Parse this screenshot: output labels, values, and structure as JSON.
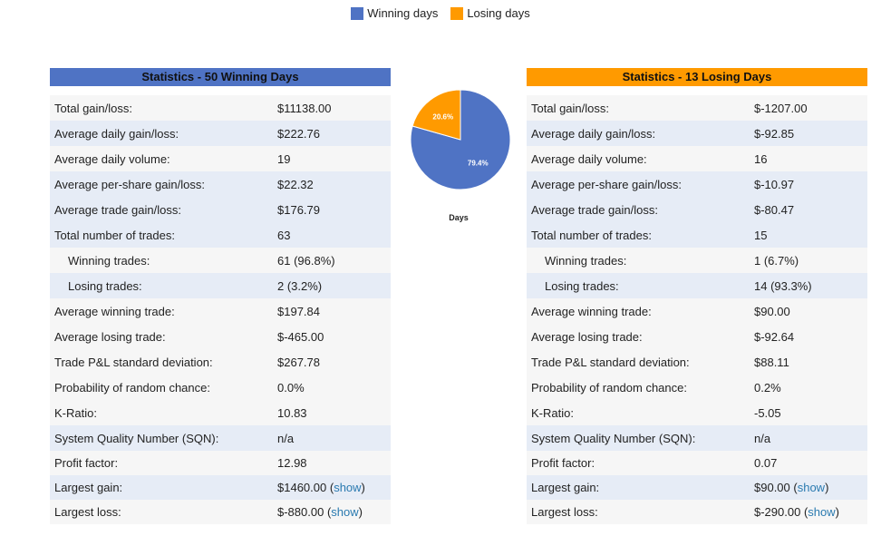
{
  "legend": {
    "items": [
      {
        "label": "Winning days",
        "color": "#4f73c4"
      },
      {
        "label": "Losing days",
        "color": "#ff9a00"
      }
    ]
  },
  "colors": {
    "win_header": "#4f73c4",
    "lose_header": "#ff9a00",
    "link": "#2a7ab0"
  },
  "chart_data": {
    "type": "pie",
    "title": "Days",
    "slices": [
      {
        "label": "Winning days",
        "value": 79.4,
        "text": "79.4%",
        "color": "#4f73c4"
      },
      {
        "label": "Losing days",
        "value": 20.6,
        "text": "20.6%",
        "color": "#ff9a00"
      }
    ]
  },
  "winning": {
    "title": "Statistics - 50 Winning Days",
    "rows": [
      {
        "label": "Total gain/loss:",
        "value": "$11138.00"
      },
      {
        "label": "Average daily gain/loss:",
        "value": "$222.76"
      },
      {
        "label": "Average daily volume:",
        "value": "19"
      },
      {
        "label": "Average per-share gain/loss:",
        "value": "$22.32"
      },
      {
        "label": "Average trade gain/loss:",
        "value": "$176.79"
      },
      {
        "label": "Total number of trades:",
        "value": "63"
      },
      {
        "label": "Winning trades:",
        "value": "61 (96.8%)"
      },
      {
        "label": "Losing trades:",
        "value": "2 (3.2%)"
      },
      {
        "label": "Average winning trade:",
        "value": "$197.84"
      },
      {
        "label": "Average losing trade:",
        "value": "$-465.00"
      },
      {
        "label": "Trade P&L standard deviation:",
        "value": "$267.78"
      },
      {
        "label": "Probability of random chance:",
        "value": "0.0%"
      },
      {
        "label": "K-Ratio:",
        "value": "10.83"
      },
      {
        "label": "System Quality Number (SQN):",
        "value": "n/a"
      },
      {
        "label": "Profit factor:",
        "value": "12.98"
      },
      {
        "label": "Largest gain:",
        "value": "$1460.00",
        "link": "show"
      },
      {
        "label": "Largest loss:",
        "value": "$-880.00",
        "link": "show"
      }
    ]
  },
  "losing": {
    "title": "Statistics - 13 Losing Days",
    "rows": [
      {
        "label": "Total gain/loss:",
        "value": "$-1207.00"
      },
      {
        "label": "Average daily gain/loss:",
        "value": "$-92.85"
      },
      {
        "label": "Average daily volume:",
        "value": "16"
      },
      {
        "label": "Average per-share gain/loss:",
        "value": "$-10.97"
      },
      {
        "label": "Average trade gain/loss:",
        "value": "$-80.47"
      },
      {
        "label": "Total number of trades:",
        "value": "15"
      },
      {
        "label": "Winning trades:",
        "value": "1 (6.7%)"
      },
      {
        "label": "Losing trades:",
        "value": "14 (93.3%)"
      },
      {
        "label": "Average winning trade:",
        "value": "$90.00"
      },
      {
        "label": "Average losing trade:",
        "value": "$-92.64"
      },
      {
        "label": "Trade P&L standard deviation:",
        "value": "$88.11"
      },
      {
        "label": "Probability of random chance:",
        "value": "0.2%"
      },
      {
        "label": "K-Ratio:",
        "value": "-5.05"
      },
      {
        "label": "System Quality Number (SQN):",
        "value": "n/a"
      },
      {
        "label": "Profit factor:",
        "value": "0.07"
      },
      {
        "label": "Largest gain:",
        "value": "$90.00",
        "link": "show"
      },
      {
        "label": "Largest loss:",
        "value": "$-290.00",
        "link": "show"
      }
    ]
  }
}
